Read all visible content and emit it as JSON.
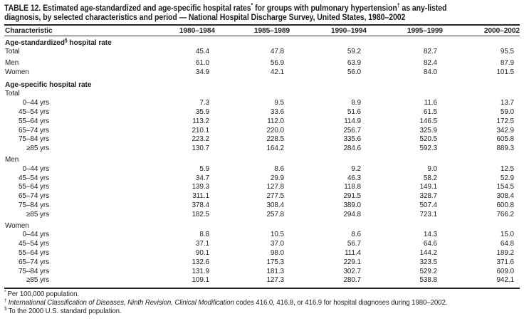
{
  "page": {
    "background": "#ffffff",
    "text_color": "#222222",
    "rule_color": "#282828"
  },
  "table": {
    "title_full": "TABLE 12. Estimated age-standardized and age-specific hospital rates* for groups with pulmonary hypertension† as any-listed diagnosis, by selected characteristics and period — National Hospital Discharge Survey, United States, 1980–2002",
    "title_lines": [
      [
        {
          "text": "TABLE 12. Estimated age-standardized and age-specific hospital rates"
        },
        {
          "text": "*",
          "sup": true
        },
        {
          "text": " for groups with pulmonary hypertension"
        },
        {
          "text": "†",
          "sup": true
        },
        {
          "text": " as any-listed"
        }
      ],
      [
        {
          "text": "diagnosis, by selected characteristics and period — National Hospital Discharge Survey, United States, 1980–2002"
        }
      ]
    ],
    "columns": [
      "Characteristic",
      "1980–1984",
      "1985–1989",
      "1990–1994",
      "1995–1999",
      "2000–2002"
    ],
    "sections": [
      {
        "header": [
          {
            "text": "Age-standardized"
          },
          {
            "text": "§",
            "sup": true
          },
          {
            "text": " hospital rate"
          }
        ],
        "rows": [
          {
            "label": "Total",
            "indent": 0,
            "values": [
              "45.4",
              "47.8",
              "59.2",
              "82.7",
              "95.5"
            ]
          },
          {
            "label": "Men",
            "indent": 0,
            "space_before": true,
            "values": [
              "61.0",
              "56.9",
              "63.9",
              "82.4",
              "87.9"
            ]
          },
          {
            "label": "Women",
            "indent": 0,
            "values": [
              "34.9",
              "42.1",
              "56.0",
              "84.0",
              "101.5"
            ]
          }
        ]
      },
      {
        "header": [
          {
            "text": "Age-specific hospital rate"
          }
        ],
        "rows": [
          {
            "label": "Total",
            "indent": 0,
            "values": []
          },
          {
            "label": "0–44 yrs",
            "indent": 1,
            "values": [
              "7.3",
              "9.5",
              "8.9",
              "11.6",
              "13.7"
            ]
          },
          {
            "label": "45–54 yrs",
            "indent": 1,
            "values": [
              "35.9",
              "33.6",
              "51.6",
              "61.5",
              "59.0"
            ]
          },
          {
            "label": "55–64 yrs",
            "indent": 1,
            "values": [
              "113.2",
              "112.0",
              "114.9",
              "146.5",
              "172.5"
            ]
          },
          {
            "label": "65–74 yrs",
            "indent": 1,
            "values": [
              "210.1",
              "220.0",
              "256.7",
              "325.9",
              "342.9"
            ]
          },
          {
            "label": "75–84 yrs",
            "indent": 1,
            "values": [
              "223.2",
              "228.5",
              "335.6",
              "520.5",
              "605.8"
            ]
          },
          {
            "label": "≥85 yrs",
            "indent": 1,
            "values": [
              "130.7",
              "164.2",
              "284.6",
              "592.3",
              "889.3"
            ]
          },
          {
            "label": "Men",
            "indent": 0,
            "space_before": true,
            "values": []
          },
          {
            "label": "0–44 yrs",
            "indent": 1,
            "values": [
              "5.9",
              "8.6",
              "9.2",
              "9.0",
              "12.5"
            ]
          },
          {
            "label": "45–54 yrs",
            "indent": 1,
            "values": [
              "34.7",
              "29.9",
              "46.3",
              "58.2",
              "52.9"
            ]
          },
          {
            "label": "55–64 yrs",
            "indent": 1,
            "values": [
              "139.3",
              "127.8",
              "118.8",
              "149.1",
              "154.5"
            ]
          },
          {
            "label": "65–74 yrs",
            "indent": 1,
            "values": [
              "311.1",
              "277.5",
              "291.5",
              "328.7",
              "308.4"
            ]
          },
          {
            "label": "75–84 yrs",
            "indent": 1,
            "values": [
              "378.4",
              "308.4",
              "389.0",
              "507.4",
              "600.8"
            ]
          },
          {
            "label": "≥85 yrs",
            "indent": 1,
            "values": [
              "182.5",
              "257.8",
              "294.8",
              "723.1",
              "766.2"
            ]
          },
          {
            "label": "Women",
            "indent": 0,
            "space_before": true,
            "values": []
          },
          {
            "label": "0–44 yrs",
            "indent": 1,
            "values": [
              "8.8",
              "10.5",
              "8.6",
              "14.3",
              "15.0"
            ]
          },
          {
            "label": "45–54 yrs",
            "indent": 1,
            "values": [
              "37.1",
              "37.0",
              "56.7",
              "64.6",
              "64.8"
            ]
          },
          {
            "label": "55–64 yrs",
            "indent": 1,
            "values": [
              "90.1",
              "98.0",
              "111.4",
              "144.2",
              "189.2"
            ]
          },
          {
            "label": "65–74 yrs",
            "indent": 1,
            "values": [
              "132.6",
              "175.3",
              "229.1",
              "323.5",
              "371.6"
            ]
          },
          {
            "label": "75–84 yrs",
            "indent": 1,
            "values": [
              "131.9",
              "181.3",
              "302.7",
              "529.2",
              "609.0"
            ]
          },
          {
            "label": "≥85 yrs",
            "indent": 1,
            "values": [
              "109.1",
              "127.3",
              "280.7",
              "538.8",
              "942.1"
            ]
          }
        ]
      }
    ],
    "footnotes": [
      {
        "marker": "*",
        "segments": [
          {
            "text": "Per 100,000 population."
          }
        ]
      },
      {
        "marker": "†",
        "segments": [
          {
            "text": "International Classification of Diseases, Ninth Revision, Clinical Modification",
            "italic": true
          },
          {
            "text": " codes 416.0, 416.8, or 416.9 for hospital diagnoses during 1980–2002."
          }
        ]
      },
      {
        "marker": "§",
        "segments": [
          {
            "text": "To the 2000 U.S. standard population."
          }
        ]
      }
    ]
  }
}
